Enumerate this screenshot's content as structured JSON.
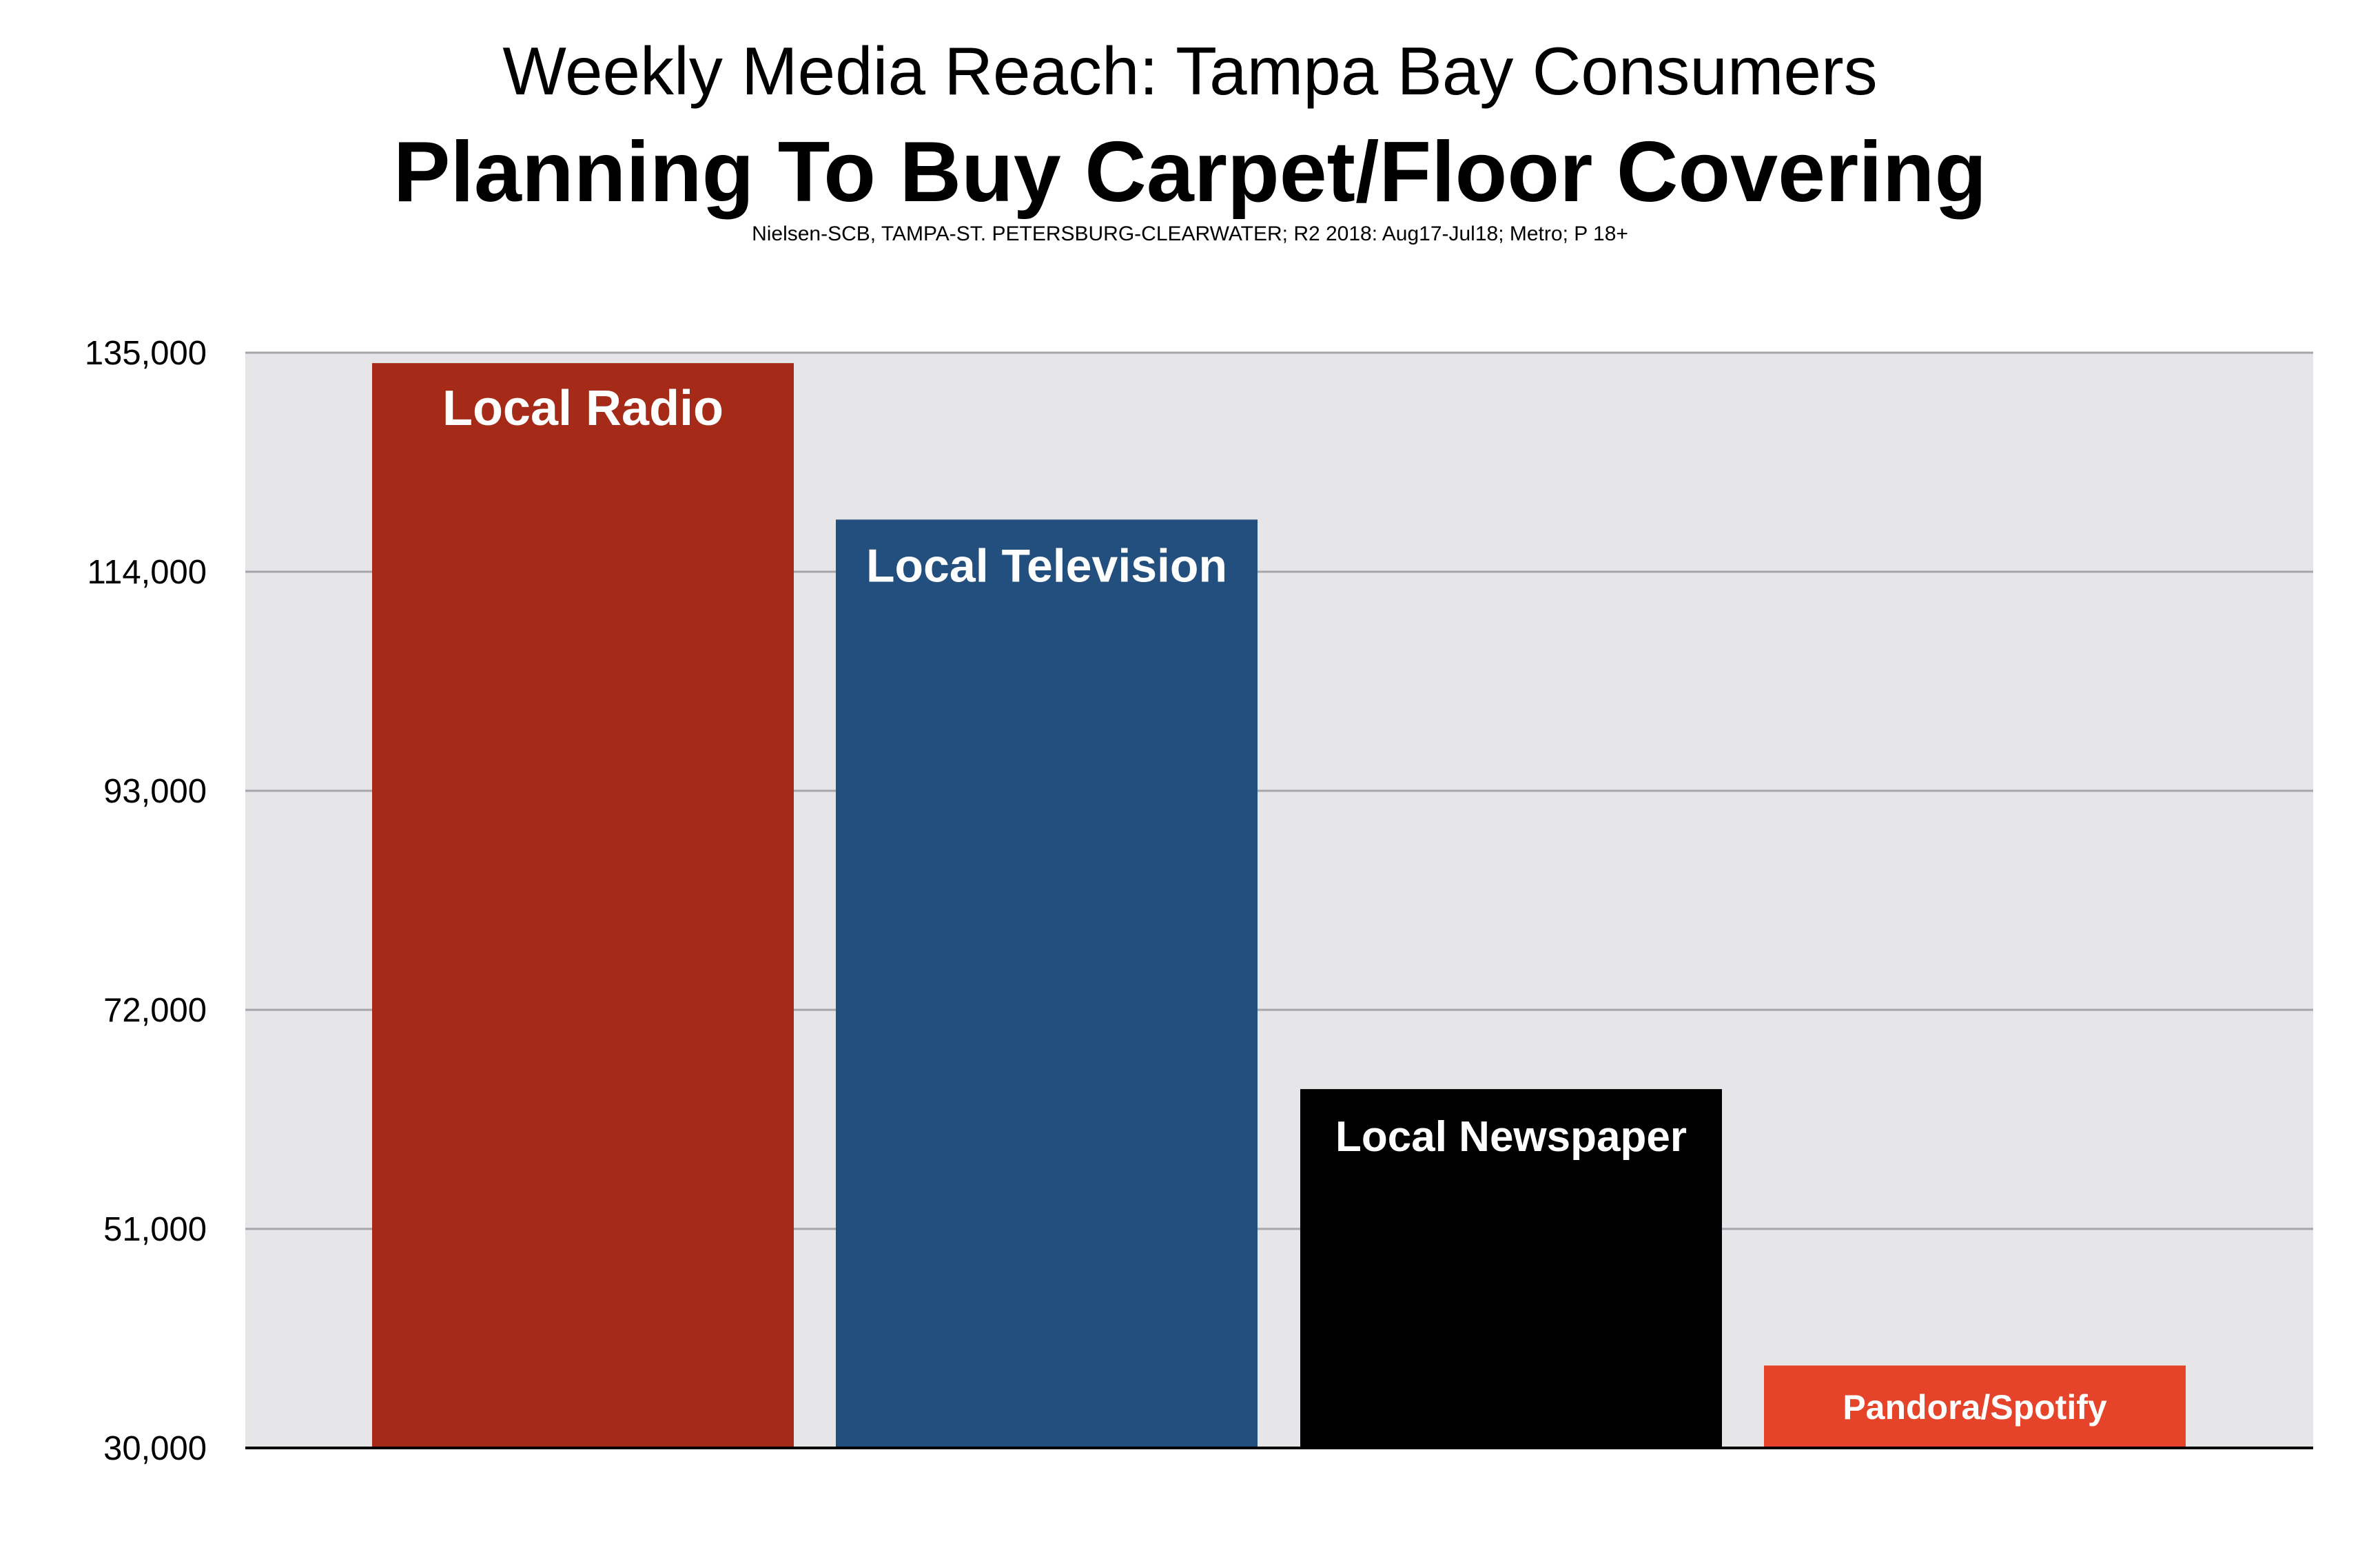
{
  "chart_data": {
    "type": "bar",
    "title": "Weekly Media Reach: Tampa Bay Consumers",
    "subtitle": "Planning To Buy Carpet/Floor Covering",
    "source": "Nielsen-SCB, TAMPA-ST. PETERSBURG-CLEARWATER; R2 2018: Aug17-Jul18; Metro; P 18+",
    "categories": [
      "Local Radio",
      "Local Television",
      "Local Newspaper",
      "Pandora/Spotify"
    ],
    "values": [
      134000,
      119000,
      64400,
      37900
    ],
    "colors": [
      "#A52A18",
      "#224F7E",
      "#000000",
      "#E5432A"
    ],
    "ylim": [
      30000,
      135000
    ],
    "yticks": [
      30000,
      51000,
      72000,
      93000,
      114000,
      135000
    ],
    "ytick_labels": [
      "30,000",
      "51,000",
      "72,000",
      "93,000",
      "114,000",
      "135,000"
    ],
    "grid": true,
    "plot_background": "#E6E6E9",
    "legend": "none (labels inside bars)"
  }
}
